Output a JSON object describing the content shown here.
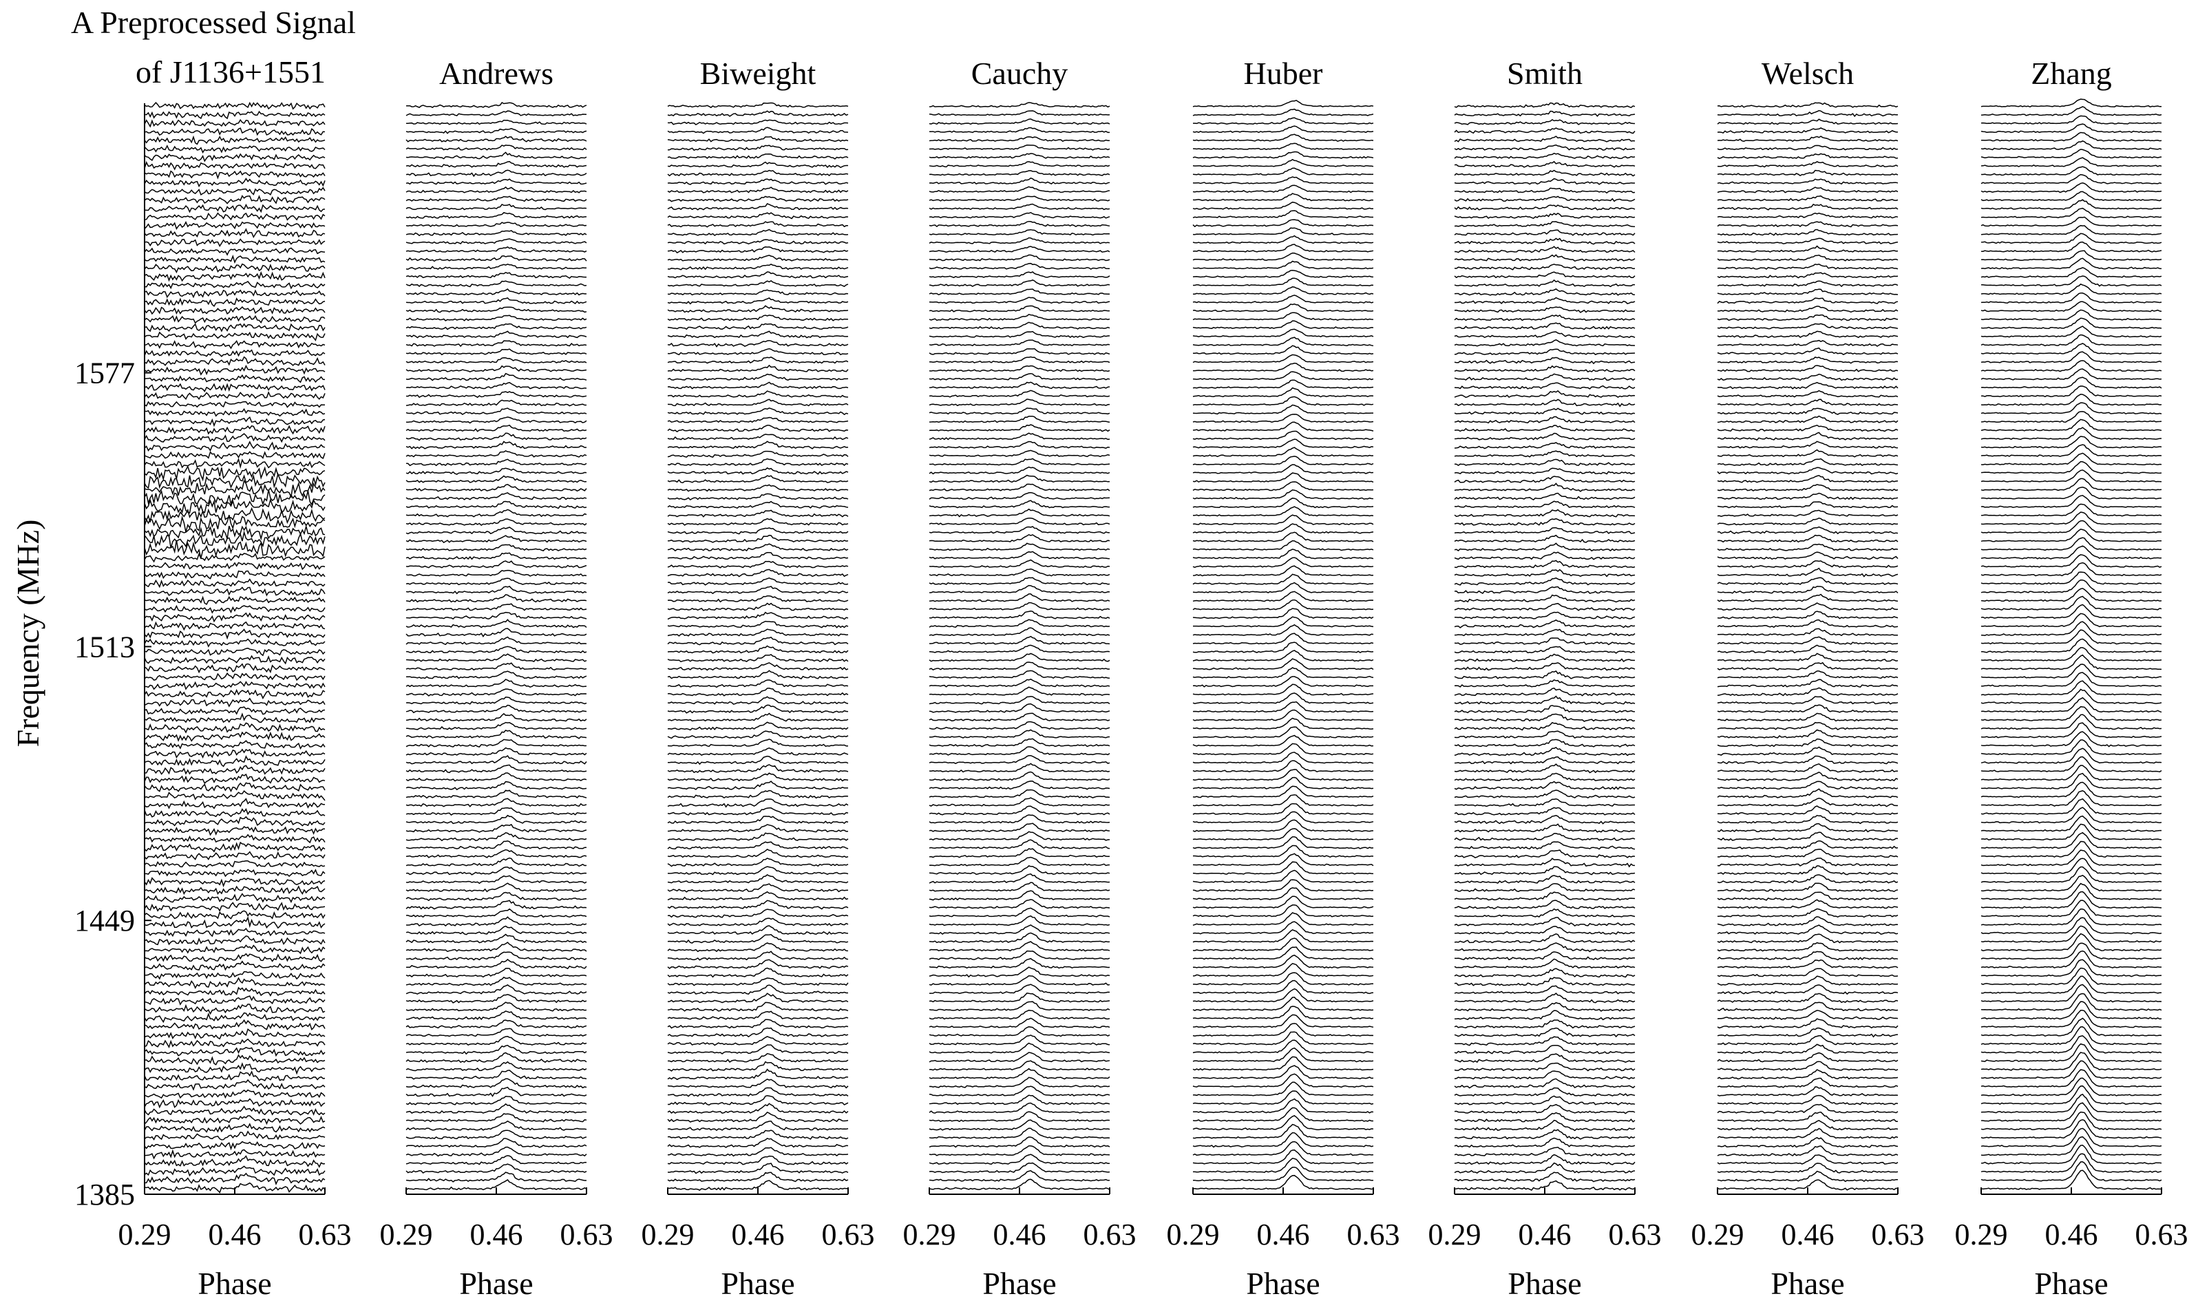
{
  "chart_data": {
    "type": "line",
    "title": "A Preprocessed Signal of J1136+1551",
    "title_lines": [
      "A Preprocessed Signal",
      "of J1136+1551"
    ],
    "ylabel": "Frequency (MHz)",
    "xlabel": "Phase",
    "y_ticks": [
      "1577",
      "1513",
      "1449",
      "1385"
    ],
    "y_tick_values": [
      1577,
      1513,
      1449,
      1385
    ],
    "x_ticks": [
      "0.29",
      "0.46",
      "0.63"
    ],
    "x_tick_values": [
      0.29,
      0.46,
      0.63
    ],
    "xlim": [
      0.29,
      0.63
    ],
    "ylim": [
      1385,
      1640
    ],
    "pulse_phase": 0.48,
    "channels": 128,
    "grid": false,
    "panels": [
      {
        "name": "preprocessed",
        "title": "",
        "noise": 0.9,
        "pulse": 0.6,
        "heavy_rfi_mhz": [
          1535,
          1555
        ],
        "rfi_amp": 2.2
      },
      {
        "name": "andrews",
        "title": "Andrews",
        "noise": 0.35,
        "pulse": 1.1
      },
      {
        "name": "biweight",
        "title": "Biweight",
        "noise": 0.35,
        "pulse": 1.1
      },
      {
        "name": "cauchy",
        "title": "Cauchy",
        "noise": 0.25,
        "pulse": 1.3
      },
      {
        "name": "huber",
        "title": "Huber",
        "noise": 0.2,
        "pulse": 1.9
      },
      {
        "name": "smith",
        "title": "Smith",
        "noise": 0.35,
        "pulse": 1.1
      },
      {
        "name": "welsch",
        "title": "Welsch",
        "noise": 0.3,
        "pulse": 1.2
      },
      {
        "name": "zhang",
        "title": "Zhang",
        "noise": 0.2,
        "pulse": 2.6,
        "heavy_rfi_mhz": [
          1535,
          1555
        ],
        "rfi_amp": 0.8
      }
    ]
  }
}
